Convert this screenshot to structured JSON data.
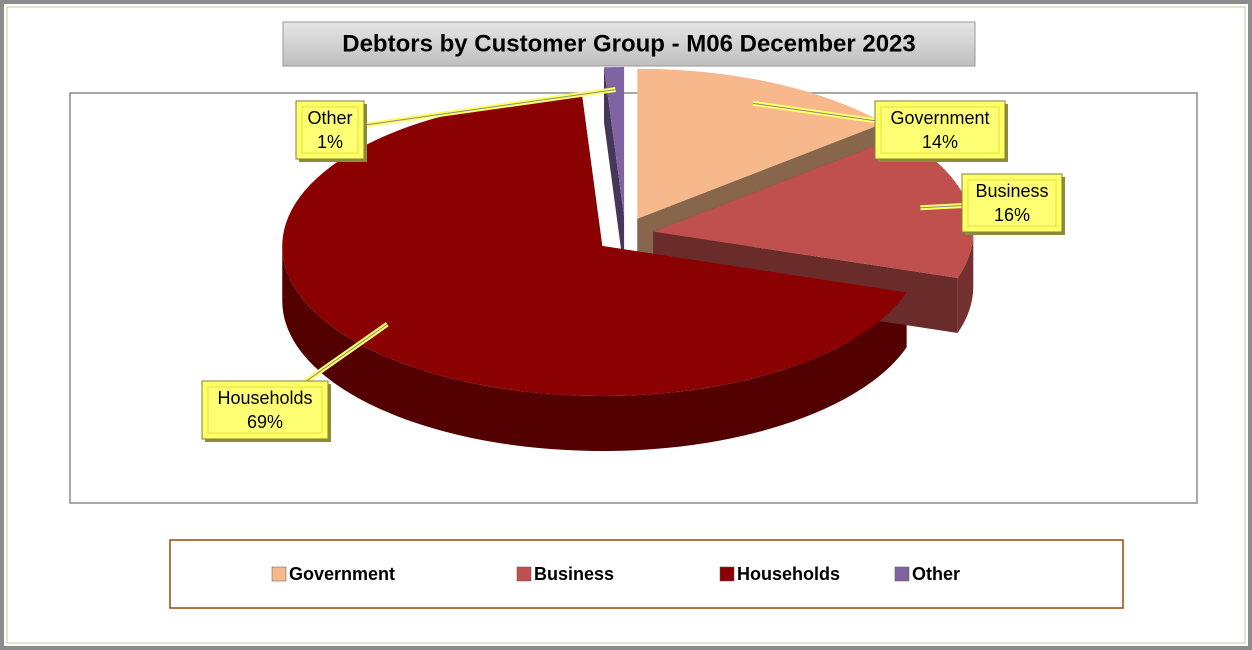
{
  "chart_data": {
    "type": "pie",
    "title": "Debtors by Customer Group - M06 December 2023",
    "categories": [
      "Government",
      "Business",
      "Households",
      "Other"
    ],
    "values": [
      14,
      16,
      69,
      1
    ],
    "value_labels": [
      "14%",
      "16%",
      "69%",
      "1%"
    ],
    "colors": [
      "#f7b98b",
      "#c0504d",
      "#8b0000",
      "#8064a2"
    ],
    "legend": "bottom"
  }
}
